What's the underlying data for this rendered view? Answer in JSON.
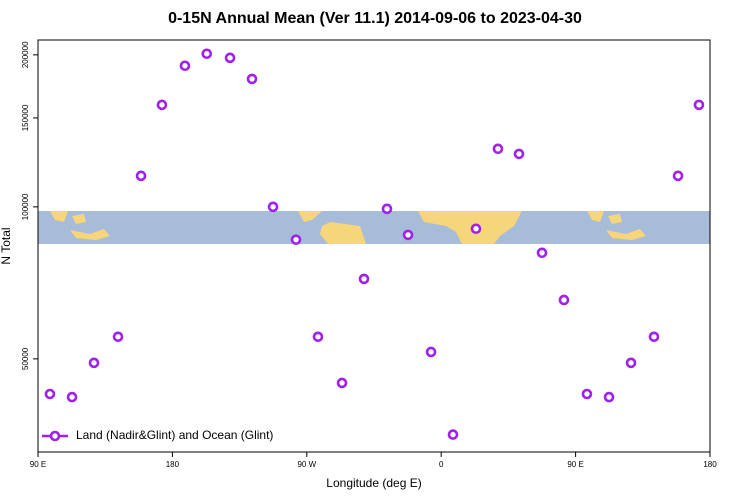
{
  "chart_data": {
    "type": "scatter",
    "title": "0-15N Annual Mean (Ver 11.1)   2014-09-06 to 2023-04-30",
    "x_label": "Longitude (deg E)",
    "y_label": "N Total",
    "x": [
      98,
      112.8,
      127.5,
      143.6,
      159,
      173,
      188.4,
      203,
      218.6,
      233.3,
      247.4,
      262.8,
      277.5,
      293.6,
      308.3,
      323.7,
      337.8,
      353.2,
      367.9,
      383.3,
      398,
      412.1,
      427.5,
      442.2,
      457.6,
      472.4,
      487.1,
      502.5,
      518.6,
      532.6
    ],
    "series": [
      {
        "name": "Land (Nadir&Glint) and Ocean (Glint)",
        "color": "#a020f0",
        "values": [
          42600,
          42000,
          49100,
          55300,
          115200,
          159200,
          190300,
          201000,
          197300,
          179200,
          100000,
          86100,
          55300,
          44800,
          72000,
          99100,
          88000,
          51600,
          35400,
          90500,
          130300,
          127300,
          81100,
          65400,
          42600,
          42000,
          49100,
          55300,
          115200,
          159200
        ]
      }
    ],
    "xlim": [
      90,
      540
    ],
    "xticks": [
      {
        "value": 90,
        "label": "90 E"
      },
      180,
      {
        "value": 270,
        "label": "90 W"
      },
      {
        "value": 360,
        "label": "0"
      },
      {
        "value": 450,
        "label": "90 E"
      },
      {
        "value": 540,
        "label": "180"
      }
    ],
    "ylim": [
      32700,
      214000
    ],
    "yticks": [
      50000,
      100000,
      150000,
      200000
    ],
    "yscale": "log",
    "legend": "lower left"
  }
}
